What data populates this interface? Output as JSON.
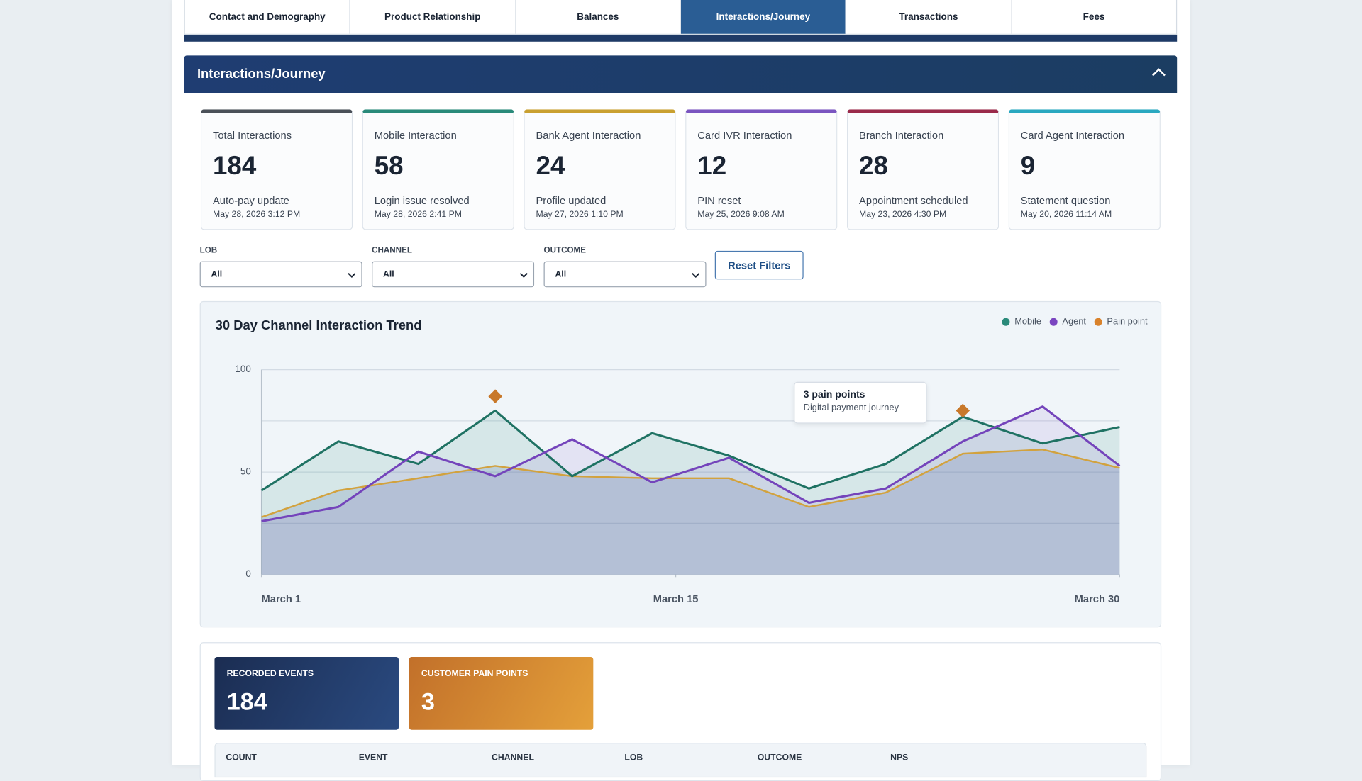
{
  "tabs": [
    "Contact and Demography",
    "Product Relationship",
    "Balances",
    "Interactions/Journey",
    "Transactions",
    "Fees"
  ],
  "active_tab": 3,
  "section": {
    "title": "Interactions/Journey"
  },
  "kpis": [
    {
      "label": "Total Interactions",
      "value": 184,
      "detail": "Auto-pay update",
      "date": "May 28, 2026 3:12 PM",
      "color": "#4a5058"
    },
    {
      "label": "Mobile Interaction",
      "value": 58,
      "detail": "Login issue resolved",
      "date": "May 28, 2026 2:41 PM",
      "color": "#2a8a7a"
    },
    {
      "label": "Bank Agent Interaction",
      "value": 24,
      "detail": "Profile updated",
      "date": "May 27, 2026 1:10 PM",
      "color": "#c9a030"
    },
    {
      "label": "Card IVR Interaction",
      "value": 12,
      "detail": "PIN reset",
      "date": "May 25, 2026 9:08 AM",
      "color": "#7a55c0"
    },
    {
      "label": "Branch Interaction",
      "value": 28,
      "detail": "Appointment scheduled",
      "date": "May 23, 2026 4:30 PM",
      "color": "#9a2a4a"
    },
    {
      "label": "Card Agent Interaction",
      "value": 9,
      "detail": "Statement question",
      "date": "May 20, 2026 11:14 AM",
      "color": "#2aa8c0"
    }
  ],
  "filters": [
    {
      "label": "LOB",
      "value": "All"
    },
    {
      "label": "CHANNEL",
      "value": "All"
    },
    {
      "label": "OUTCOME",
      "value": "All"
    }
  ],
  "reset_label": "Reset Filters",
  "chart_data": {
    "type": "line",
    "title": "30 Day Channel Interaction Trend",
    "x": [
      1,
      3.6,
      6.3,
      8.9,
      11.5,
      14.2,
      16.8,
      19.5,
      22.1,
      24.7,
      27.4,
      30
    ],
    "xlim": [
      1,
      30
    ],
    "xticks": [
      {
        "value": 1,
        "label": "March 1"
      },
      {
        "value": 15,
        "label": "March 15"
      },
      {
        "value": 30,
        "label": "March 30"
      }
    ],
    "ylim": [
      0,
      100
    ],
    "yticks": [
      0,
      50,
      100
    ],
    "minor_yticks": [
      25,
      75
    ],
    "grid": true,
    "legend": "top-right",
    "series": [
      {
        "name": "Mobile",
        "color": "#1f7263",
        "legend_color": "#2a8a7a",
        "fill": "rgba(42,138,122,0.13)",
        "values": [
          41,
          65,
          54,
          80,
          48,
          69,
          58,
          42,
          54,
          77,
          64,
          72
        ]
      },
      {
        "name": "Agent",
        "color": "#7444bb",
        "legend_color": "#7a45c0",
        "fill": "rgba(122,69,192,0.10)",
        "values": [
          26,
          33,
          60,
          48,
          66,
          45,
          57,
          35,
          42,
          65,
          82,
          53
        ]
      },
      {
        "name": "Pain point",
        "color": "#d2a23e",
        "legend_color": "#d9822b",
        "fill": "rgba(70,100,150,0.18)",
        "values": [
          28,
          41,
          47,
          53,
          48,
          47,
          47,
          33,
          40,
          59,
          61,
          52
        ]
      }
    ],
    "markers": {
      "color": "#c8782a",
      "x": [
        8.9,
        24.7
      ],
      "values": [
        87,
        80
      ]
    }
  },
  "tooltip": {
    "title": "3 pain points",
    "subtitle": "Digital payment journey"
  },
  "summary": [
    {
      "label": "RECORDED EVENTS",
      "value": 184
    },
    {
      "label": "CUSTOMER PAIN POINTS",
      "value": 3
    }
  ],
  "table": {
    "columns": [
      "COUNT",
      "EVENT",
      "CHANNEL",
      "LOB",
      "OUTCOME",
      "NPS"
    ]
  }
}
